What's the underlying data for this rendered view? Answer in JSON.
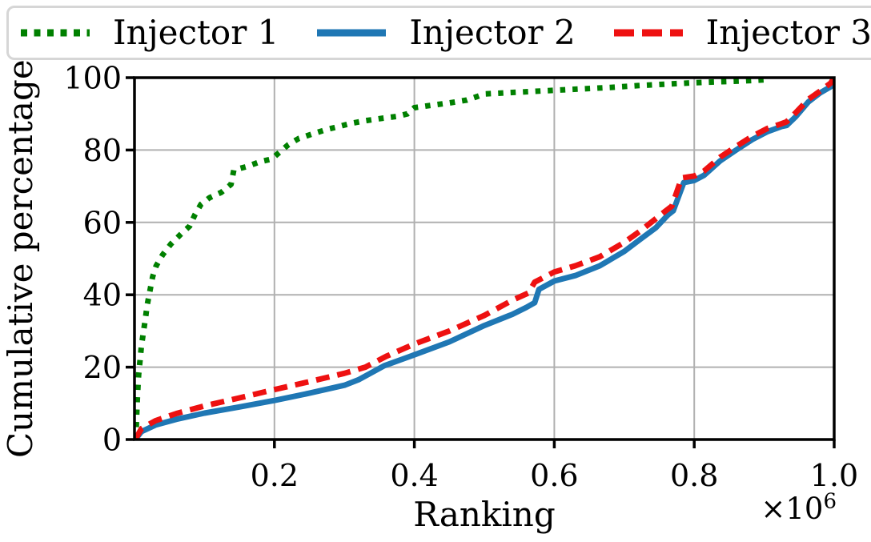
{
  "legend": {
    "items": [
      {
        "label": "Injector 1"
      },
      {
        "label": "Injector 2"
      },
      {
        "label": "Injector 3"
      }
    ]
  },
  "axes": {
    "xlabel": "Ranking",
    "ylabel": "Cumulative percentage",
    "offset_base": "×10",
    "offset_exponent": "6",
    "xlim": [
      0,
      1.0
    ],
    "ylim": [
      0,
      100
    ],
    "xtick_values": [
      0.2,
      0.4,
      0.6,
      0.8,
      1.0
    ],
    "xtick_labels": [
      "0.2",
      "0.4",
      "0.6",
      "0.8",
      "1.0"
    ],
    "ytick_values": [
      0,
      20,
      40,
      60,
      80,
      100
    ],
    "ytick_labels": [
      "0",
      "20",
      "40",
      "60",
      "80",
      "100"
    ],
    "grid": true,
    "grid_color": "#b0b0b0",
    "frame_color": "#000000"
  },
  "chart_data": {
    "type": "line",
    "title": "",
    "xlabel": "Ranking",
    "ylabel": "Cumulative percentage",
    "x_multiplier": 1000000,
    "x_units_note": "x values below are in units of 10^6 ranking positions",
    "xlim": [
      0,
      1.0
    ],
    "ylim": [
      0,
      100
    ],
    "grid": true,
    "legend_position": "top, horizontal, 3 columns",
    "series": [
      {
        "name": "Injector 1",
        "color": "#008000",
        "linestyle": "dotted",
        "points": [
          [
            0.002,
            0
          ],
          [
            0.003,
            6
          ],
          [
            0.004,
            11
          ],
          [
            0.005,
            15
          ],
          [
            0.006,
            18
          ],
          [
            0.008,
            22
          ],
          [
            0.01,
            26
          ],
          [
            0.013,
            30
          ],
          [
            0.016,
            34
          ],
          [
            0.018,
            37
          ],
          [
            0.022,
            41
          ],
          [
            0.026,
            45
          ],
          [
            0.031,
            48
          ],
          [
            0.04,
            51
          ],
          [
            0.052,
            54
          ],
          [
            0.065,
            56.5
          ],
          [
            0.079,
            59
          ],
          [
            0.086,
            62
          ],
          [
            0.095,
            65
          ],
          [
            0.107,
            66.8
          ],
          [
            0.124,
            68.3
          ],
          [
            0.138,
            70.5
          ],
          [
            0.142,
            74.5
          ],
          [
            0.16,
            75.4
          ],
          [
            0.18,
            76.8
          ],
          [
            0.196,
            77.5
          ],
          [
            0.205,
            79
          ],
          [
            0.22,
            81.5
          ],
          [
            0.235,
            83.2
          ],
          [
            0.255,
            84.5
          ],
          [
            0.275,
            85.7
          ],
          [
            0.29,
            86.4
          ],
          [
            0.31,
            87.4
          ],
          [
            0.33,
            88.1
          ],
          [
            0.355,
            88.8
          ],
          [
            0.375,
            89.3
          ],
          [
            0.39,
            90
          ],
          [
            0.4,
            91.7
          ],
          [
            0.425,
            92.4
          ],
          [
            0.45,
            93
          ],
          [
            0.475,
            93.8
          ],
          [
            0.49,
            94.8
          ],
          [
            0.5,
            95.5
          ],
          [
            0.53,
            95.8
          ],
          [
            0.56,
            96.1
          ],
          [
            0.6,
            96.5
          ],
          [
            0.64,
            96.9
          ],
          [
            0.68,
            97.3
          ],
          [
            0.72,
            97.8
          ],
          [
            0.76,
            98.2
          ],
          [
            0.8,
            98.6
          ],
          [
            0.84,
            98.9
          ],
          [
            0.87,
            99.1
          ],
          [
            0.9,
            99.4
          ]
        ]
      },
      {
        "name": "Injector 2",
        "color": "#1f77b4",
        "linestyle": "solid",
        "points": [
          [
            0.001,
            0
          ],
          [
            0.01,
            2.2
          ],
          [
            0.03,
            4
          ],
          [
            0.06,
            5.6
          ],
          [
            0.1,
            7.3
          ],
          [
            0.15,
            9
          ],
          [
            0.2,
            10.8
          ],
          [
            0.25,
            12.8
          ],
          [
            0.3,
            15
          ],
          [
            0.32,
            16.5
          ],
          [
            0.357,
            20.4
          ],
          [
            0.4,
            23.4
          ],
          [
            0.45,
            27
          ],
          [
            0.5,
            31.5
          ],
          [
            0.54,
            34.6
          ],
          [
            0.56,
            36.5
          ],
          [
            0.572,
            37.8
          ],
          [
            0.578,
            41.5
          ],
          [
            0.6,
            43.8
          ],
          [
            0.63,
            45.3
          ],
          [
            0.665,
            48
          ],
          [
            0.7,
            52
          ],
          [
            0.722,
            55.2
          ],
          [
            0.745,
            58.5
          ],
          [
            0.762,
            62
          ],
          [
            0.77,
            63.2
          ],
          [
            0.785,
            71
          ],
          [
            0.8,
            71.6
          ],
          [
            0.814,
            73
          ],
          [
            0.837,
            77
          ],
          [
            0.86,
            80
          ],
          [
            0.883,
            82.9
          ],
          [
            0.905,
            85.1
          ],
          [
            0.925,
            86.5
          ],
          [
            0.932,
            86.8
          ],
          [
            0.945,
            89.2
          ],
          [
            0.963,
            93.3
          ],
          [
            0.98,
            95.8
          ],
          [
            0.995,
            97.5
          ],
          [
            1.0,
            99.8
          ]
        ]
      },
      {
        "name": "Injector 3",
        "color": "#ee1111",
        "linestyle": "dashed",
        "points": [
          [
            0.001,
            0
          ],
          [
            0.01,
            3
          ],
          [
            0.03,
            5.2
          ],
          [
            0.06,
            7.2
          ],
          [
            0.1,
            9.3
          ],
          [
            0.15,
            11.5
          ],
          [
            0.2,
            13.8
          ],
          [
            0.25,
            16
          ],
          [
            0.3,
            18.3
          ],
          [
            0.33,
            20
          ],
          [
            0.36,
            23
          ],
          [
            0.4,
            26.4
          ],
          [
            0.45,
            30
          ],
          [
            0.5,
            34.3
          ],
          [
            0.54,
            38.5
          ],
          [
            0.563,
            40.5
          ],
          [
            0.572,
            43.5
          ],
          [
            0.6,
            46.3
          ],
          [
            0.63,
            48
          ],
          [
            0.665,
            50.5
          ],
          [
            0.7,
            54.5
          ],
          [
            0.722,
            57.5
          ],
          [
            0.745,
            61
          ],
          [
            0.758,
            63
          ],
          [
            0.768,
            64.5
          ],
          [
            0.782,
            72.3
          ],
          [
            0.8,
            72.8
          ],
          [
            0.814,
            74.2
          ],
          [
            0.837,
            78
          ],
          [
            0.86,
            81
          ],
          [
            0.883,
            83.8
          ],
          [
            0.905,
            86
          ],
          [
            0.925,
            87.3
          ],
          [
            0.932,
            87.8
          ],
          [
            0.945,
            90.3
          ],
          [
            0.963,
            94
          ],
          [
            0.98,
            96.3
          ],
          [
            0.995,
            98.5
          ],
          [
            1.0,
            100
          ]
        ]
      }
    ]
  }
}
